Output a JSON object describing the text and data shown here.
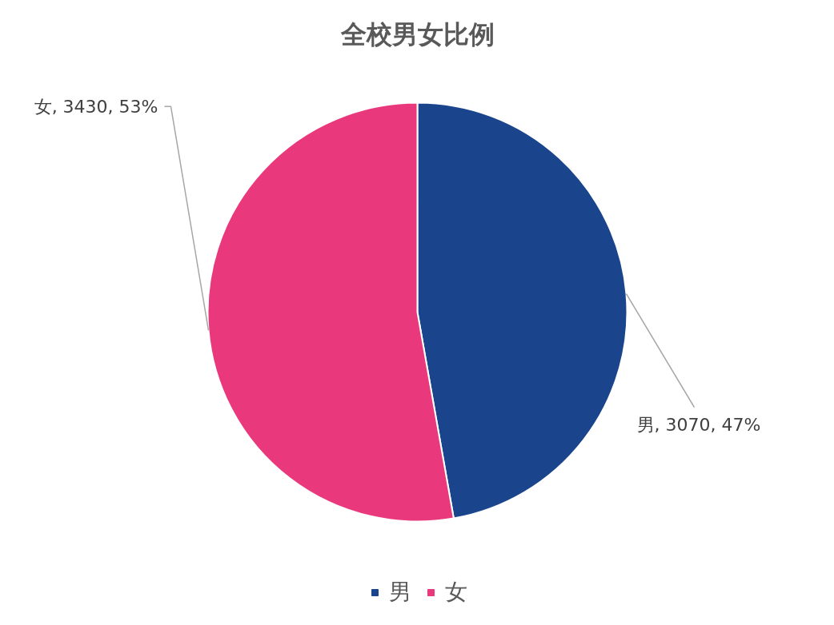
{
  "chart_data": {
    "type": "pie",
    "title": "全校男女比例",
    "categories": [
      "男",
      "女"
    ],
    "values": [
      3070,
      3430
    ],
    "colors": [
      "#1a458c",
      "#e9397c"
    ],
    "value_labels": [
      "男, 3070, 47%",
      "女, 3430, 53%"
    ],
    "legend": "bottom"
  }
}
